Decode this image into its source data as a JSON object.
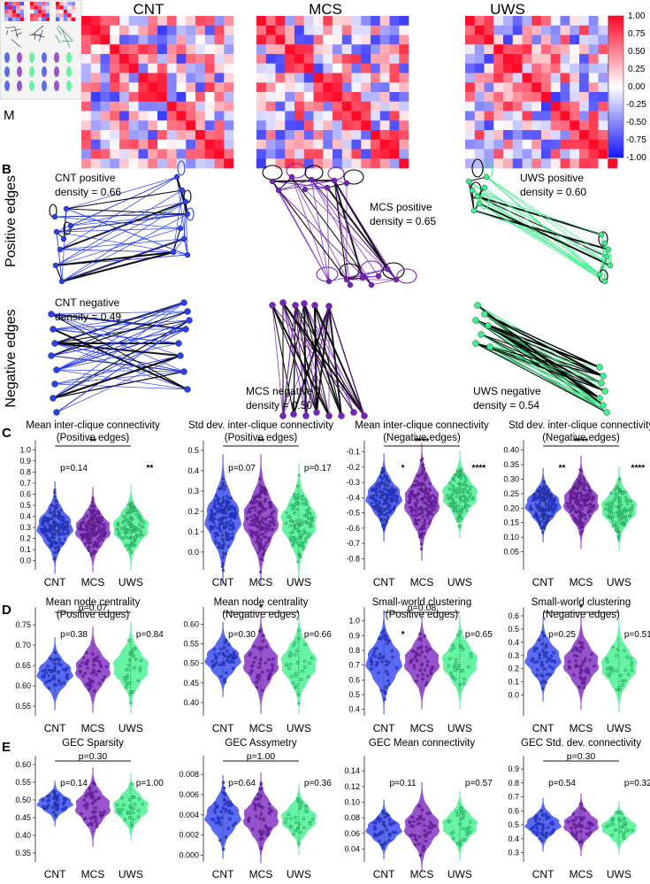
{
  "figure": {
    "colors": {
      "CNT": "#2a3ff0",
      "MCS": "#7a22c0",
      "UWS": "#3cf08a",
      "hm_pos": "#ff0a2a",
      "hm_neg": "#1a1aff",
      "edge_black": "#000000"
    },
    "inset_label": "M",
    "panel_letters": {
      "B": "B",
      "C": "C",
      "D": "D",
      "E": "E"
    },
    "row_labels": {
      "positive": "Positive edges",
      "negative": "Negative edges"
    }
  },
  "panel_a": {
    "titles": [
      "CNT",
      "MCS",
      "UWS"
    ],
    "colorbar_ticks": [
      "1.00",
      "0.75",
      "0.50",
      "0.25",
      "0.00",
      "-0.25",
      "-0.50",
      "-0.75",
      "-1.00"
    ]
  },
  "panel_b": {
    "graphs": [
      {
        "group": "CNT",
        "sign": "positive",
        "label1": "CNT positive",
        "label2": "density = 0.66",
        "density": 0.66
      },
      {
        "group": "MCS",
        "sign": "positive",
        "label1": "MCS positive",
        "label2": "density = 0.65",
        "density": 0.65
      },
      {
        "group": "UWS",
        "sign": "positive",
        "label1": "UWS positive",
        "label2": "density = 0.60",
        "density": 0.6
      },
      {
        "group": "CNT",
        "sign": "negative",
        "label1": "CNT negative",
        "label2": "density = 0.49",
        "density": 0.49
      },
      {
        "group": "MCS",
        "sign": "negative",
        "label1": "MCS negative",
        "label2": "density = 0.50",
        "density": 0.5
      },
      {
        "group": "UWS",
        "sign": "negative",
        "label1": "UWS negative",
        "label2": "density = 0.54",
        "density": 0.54
      }
    ]
  },
  "chart_data": [
    {
      "type": "violin",
      "panel": "C",
      "title": "Mean inter-clique connectivity",
      "subtitle": "(Positive edges)",
      "categories": [
        "CNT",
        "MCS",
        "UWS"
      ],
      "ylim": [
        -0.05,
        1.05
      ],
      "yticks": [
        "0.0",
        "0.1",
        "0.2",
        "0.3",
        "0.4",
        "0.5",
        "0.6",
        "0.7",
        "0.8",
        "0.9",
        "1.0"
      ],
      "means": [
        0.3,
        0.28,
        0.3
      ],
      "spreads": [
        0.13,
        0.12,
        0.12
      ],
      "n_points": [
        180,
        180,
        120
      ],
      "annotations": [
        {
          "text": "**",
          "between": [
            0,
            2
          ]
        },
        {
          "text": "p=0.14",
          "pos": 0.5
        },
        {
          "text": "**",
          "pos": 1.5
        }
      ]
    },
    {
      "type": "violin",
      "panel": "C",
      "title": "Std dev. inter-clique connectivity",
      "subtitle": "(Positive edges)",
      "categories": [
        "CNT",
        "MCS",
        "UWS"
      ],
      "ylim": [
        -0.07,
        0.53
      ],
      "yticks": [
        "0.0",
        "0.1",
        "0.2",
        "0.3",
        "0.4",
        "0.5"
      ],
      "means": [
        0.16,
        0.16,
        0.15
      ],
      "spreads": [
        0.1,
        0.1,
        0.09
      ],
      "n_points": [
        180,
        180,
        120
      ],
      "annotations": [
        {
          "text": "**",
          "between": [
            0,
            2
          ]
        },
        {
          "text": "p=0.07",
          "pos": 0.5
        },
        {
          "text": "p=0.17",
          "pos": 1.5
        }
      ]
    },
    {
      "type": "violin",
      "panel": "C",
      "title": "Mean inter-clique connectivity",
      "subtitle": "(Negative edges)",
      "categories": [
        "CNT",
        "MCS",
        "UWS"
      ],
      "ylim": [
        -0.85,
        -0.05
      ],
      "yticks": [
        "-0.1",
        "-0.2",
        "-0.3",
        "-0.4",
        "-0.5",
        "-0.6",
        "-0.7",
        "-0.8"
      ],
      "means": [
        -0.4,
        -0.43,
        -0.38
      ],
      "spreads": [
        0.09,
        0.12,
        0.09
      ],
      "n_points": [
        180,
        180,
        120
      ],
      "annotations": [
        {
          "text": "****",
          "between": [
            0,
            2
          ]
        },
        {
          "text": "*",
          "pos": 0.5
        },
        {
          "text": "****",
          "pos": 1.5
        }
      ]
    },
    {
      "type": "violin",
      "panel": "C",
      "title": "Std dev. inter-clique connectivity",
      "subtitle": "(Negative edges)",
      "categories": [
        "CNT",
        "MCS",
        "UWS"
      ],
      "ylim": [
        0.0,
        0.42
      ],
      "yticks": [
        "0.05",
        "0.10",
        "0.15",
        "0.20",
        "0.25",
        "0.30",
        "0.35",
        "0.40"
      ],
      "means": [
        0.21,
        0.22,
        0.2
      ],
      "spreads": [
        0.04,
        0.05,
        0.045
      ],
      "n_points": [
        180,
        180,
        120
      ],
      "annotations": [
        {
          "text": "****",
          "between": [
            0,
            2
          ]
        },
        {
          "text": "**",
          "pos": 0.5
        },
        {
          "text": "****",
          "pos": 1.5
        }
      ]
    },
    {
      "type": "violin",
      "panel": "D",
      "title": "Mean node centrality",
      "subtitle": "(Positive edges)",
      "categories": [
        "CNT",
        "MCS",
        "UWS"
      ],
      "ylim": [
        0.535,
        0.785
      ],
      "yticks": [
        "0.55",
        "0.60",
        "0.65",
        "0.70",
        "0.75"
      ],
      "means": [
        0.63,
        0.64,
        0.645
      ],
      "spreads": [
        0.028,
        0.033,
        0.035
      ],
      "n_points": [
        45,
        45,
        30
      ],
      "annotations": [
        {
          "text": "p=0.07",
          "between": [
            0,
            2
          ]
        },
        {
          "text": "p=0.38",
          "pos": 0.5
        },
        {
          "text": "p=0.84",
          "pos": 1.5
        }
      ]
    },
    {
      "type": "violin",
      "panel": "D",
      "title": "Mean node centrality",
      "subtitle": "(Negative edges)",
      "categories": [
        "CNT",
        "MCS",
        "UWS"
      ],
      "ylim": [
        0.375,
        0.635
      ],
      "yticks": [
        "0.40",
        "0.45",
        "0.50",
        "0.55",
        "0.60"
      ],
      "means": [
        0.51,
        0.5,
        0.5
      ],
      "spreads": [
        0.03,
        0.04,
        0.04
      ],
      "n_points": [
        45,
        45,
        30
      ],
      "annotations": [
        {
          "text": "*",
          "between": [
            0,
            2
          ]
        },
        {
          "text": "p=0.30",
          "pos": 0.5
        },
        {
          "text": "p=0.66",
          "pos": 1.5
        }
      ]
    },
    {
      "type": "violin",
      "panel": "D",
      "title": "Small-world clustering",
      "subtitle": "(Positive edges)",
      "categories": [
        "CNT",
        "MCS",
        "UWS"
      ],
      "ylim": [
        0.38,
        1.07
      ],
      "yticks": [
        "0.4",
        "0.5",
        "0.6",
        "0.7",
        "0.8",
        "0.9",
        "1.0"
      ],
      "means": [
        0.72,
        0.72,
        0.72
      ],
      "spreads": [
        0.11,
        0.1,
        0.1
      ],
      "n_points": [
        45,
        45,
        30
      ],
      "annotations": [
        {
          "text": "p=0.08",
          "between": [
            0,
            2
          ]
        },
        {
          "text": "*",
          "pos": 0.5
        },
        {
          "text": "p=0.65",
          "pos": 1.5
        }
      ]
    },
    {
      "type": "violin",
      "panel": "D",
      "title": "Small-world clustering",
      "subtitle": "(Negative edges)",
      "categories": [
        "CNT",
        "MCS",
        "UWS"
      ],
      "ylim": [
        -0.13,
        0.64
      ],
      "yticks": [
        "0.0",
        "0.1",
        "0.2",
        "0.3",
        "0.4",
        "0.5",
        "0.6"
      ],
      "means": [
        0.27,
        0.24,
        0.22
      ],
      "spreads": [
        0.1,
        0.11,
        0.11
      ],
      "n_points": [
        45,
        45,
        30
      ],
      "annotations": [
        {
          "text": "*",
          "between": [
            0,
            2
          ]
        },
        {
          "text": "p=0.25",
          "pos": 0.5
        },
        {
          "text": "p=0.51",
          "pos": 1.5
        }
      ]
    },
    {
      "type": "violin",
      "panel": "E",
      "title": "GEC Sparsity",
      "categories": [
        "CNT",
        "MCS",
        "UWS"
      ],
      "ylim": [
        0.335,
        0.615
      ],
      "yticks": [
        "0.35",
        "0.40",
        "0.45",
        "0.50",
        "0.55",
        "0.60"
      ],
      "means": [
        0.49,
        0.48,
        0.48
      ],
      "spreads": [
        0.02,
        0.035,
        0.03
      ],
      "n_points": [
        45,
        45,
        30
      ],
      "annotations": [
        {
          "text": "p=0.30",
          "between": [
            0,
            2
          ]
        },
        {
          "text": "p=0.14",
          "pos": 0.5
        },
        {
          "text": "p=1.00",
          "pos": 1.5
        }
      ]
    },
    {
      "type": "violin",
      "panel": "E",
      "title": "GEC Assymetry",
      "categories": [
        "CNT",
        "MCS",
        "UWS"
      ],
      "ylim": [
        -0.0003,
        0.0095
      ],
      "yticks": [
        "0.000",
        "0.002",
        "0.004",
        "0.006",
        "0.008"
      ],
      "means": [
        0.0038,
        0.0037,
        0.0036
      ],
      "spreads": [
        0.0013,
        0.0014,
        0.0011
      ],
      "n_points": [
        45,
        45,
        30
      ],
      "annotations": [
        {
          "text": "p=1.00",
          "between": [
            0,
            2
          ]
        },
        {
          "text": "p=0.64",
          "pos": 0.5
        },
        {
          "text": "p=0.36",
          "pos": 1.5
        }
      ]
    },
    {
      "type": "violin",
      "panel": "E",
      "title": "GEC Mean connectivity",
      "categories": [
        "CNT",
        "MCS",
        "UWS"
      ],
      "ylim": [
        0.028,
        0.155
      ],
      "yticks": [
        "0.04",
        "0.06",
        "0.08",
        "0.10",
        "0.12",
        "0.14"
      ],
      "means": [
        0.065,
        0.068,
        0.07
      ],
      "spreads": [
        0.012,
        0.018,
        0.014
      ],
      "n_points": [
        45,
        45,
        30
      ],
      "annotations": [
        {
          "text": "p=0.11",
          "pos": 0.5
        },
        {
          "text": "p=0.57",
          "pos": 1.5
        }
      ]
    },
    {
      "type": "violin",
      "panel": "E",
      "title": "GEC Std. dev. connectivity",
      "categories": [
        "CNT",
        "MCS",
        "UWS"
      ],
      "ylim": [
        0.26,
        0.97
      ],
      "yticks": [
        "0.3",
        "0.4",
        "0.5",
        "0.6",
        "0.7",
        "0.8",
        "0.9"
      ],
      "means": [
        0.5,
        0.5,
        0.48
      ],
      "spreads": [
        0.06,
        0.07,
        0.06
      ],
      "n_points": [
        45,
        45,
        30
      ],
      "annotations": [
        {
          "text": "p=0.30",
          "between": [
            0,
            2
          ]
        },
        {
          "text": "p=0.54",
          "pos": 0.5
        },
        {
          "text": "p=0.32",
          "pos": 1.5
        }
      ]
    }
  ]
}
